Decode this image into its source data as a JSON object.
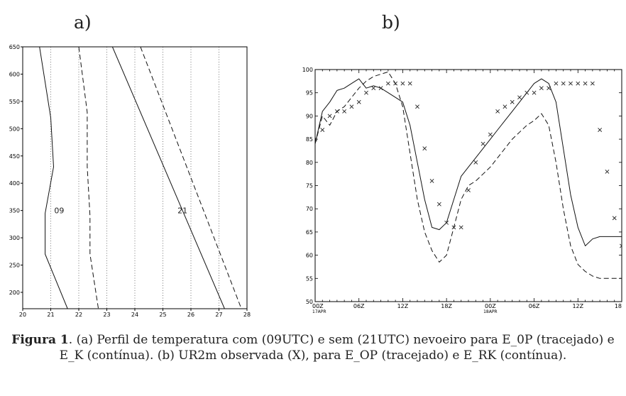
{
  "panel_labels": {
    "a": "a)",
    "b": "b)"
  },
  "caption": {
    "label": "Figura 1",
    "text": ". (a) Perfil de temperatura com (09UTC) e sem (21UTC) nevoeiro para E_0P (tracejado) e E_K (contínua). (b) UR2m observada (X), para E_OP (tracejado) e E_RK (contínua)."
  },
  "chart_data": [
    {
      "type": "line",
      "panel": "a",
      "title": "",
      "xlabel": "",
      "ylabel": "",
      "xlim": [
        20,
        28
      ],
      "ylim": [
        170,
        650
      ],
      "y_inverted": true,
      "xticks": [
        "20",
        "21",
        "22",
        "23",
        "24",
        "25",
        "26",
        "27",
        "28"
      ],
      "yticks": [
        "200",
        "250",
        "300",
        "350",
        "400",
        "450",
        "500",
        "550",
        "600",
        "650"
      ],
      "grid": "vertical dotted",
      "annotations": [
        {
          "text": "09",
          "x": 21.3,
          "y": 350
        },
        {
          "text": "21",
          "x": 25.7,
          "y": 350
        }
      ],
      "series": [
        {
          "style": "solid",
          "points": [
            [
              20.6,
              650
            ],
            [
              21.0,
              520
            ],
            [
              21.1,
              430
            ],
            [
              20.8,
              345
            ],
            [
              20.8,
              270
            ],
            [
              21.6,
              170
            ]
          ]
        },
        {
          "style": "dashed",
          "points": [
            [
              22.0,
              650
            ],
            [
              22.3,
              530
            ],
            [
              22.3,
              430
            ],
            [
              22.4,
              340
            ],
            [
              22.4,
              270
            ],
            [
              22.7,
              170
            ]
          ]
        },
        {
          "style": "solid",
          "points": [
            [
              23.2,
              650
            ],
            [
              27.2,
              170
            ]
          ]
        },
        {
          "style": "dashed",
          "points": [
            [
              24.2,
              650
            ],
            [
              27.8,
              170
            ]
          ]
        }
      ]
    },
    {
      "type": "line",
      "panel": "b",
      "title": "",
      "xlabel": "",
      "ylabel": "",
      "xlim": [
        0,
        42
      ],
      "ylim": [
        50,
        100
      ],
      "xticks": [
        {
          "v": 0,
          "l1": "00Z",
          "l2": "17APR"
        },
        {
          "v": 6,
          "l1": "06Z",
          "l2": ""
        },
        {
          "v": 12,
          "l1": "12Z",
          "l2": ""
        },
        {
          "v": 18,
          "l1": "18Z",
          "l2": ""
        },
        {
          "v": 24,
          "l1": "00Z",
          "l2": "18APR"
        },
        {
          "v": 30,
          "l1": "06Z",
          "l2": ""
        },
        {
          "v": 36,
          "l1": "12Z",
          "l2": ""
        },
        {
          "v": 42,
          "l1": "18",
          "l2": ""
        }
      ],
      "yticks": [
        "50",
        "55",
        "60",
        "65",
        "70",
        "75",
        "80",
        "85",
        "90",
        "95",
        "100"
      ],
      "grid": "off",
      "series": [
        {
          "style": "solid",
          "x": [
            0,
            1,
            2,
            3,
            4,
            5,
            6,
            7,
            8,
            9,
            10,
            11,
            12,
            13,
            14,
            15,
            16,
            17,
            18,
            19,
            20,
            21,
            22,
            23,
            24,
            25,
            26,
            27,
            28,
            29,
            30,
            31,
            32,
            33,
            34,
            35,
            36,
            37,
            38,
            39,
            40,
            41,
            42
          ],
          "y": [
            84,
            91,
            93,
            95.5,
            96,
            97,
            98,
            96,
            96.5,
            96,
            95,
            94,
            93,
            88,
            80,
            72,
            66,
            65.5,
            67,
            72,
            77,
            79,
            81,
            83,
            85,
            87,
            89,
            91,
            93,
            95,
            97,
            98,
            97,
            93,
            83,
            73,
            66,
            62,
            63.5,
            64,
            64,
            64,
            64
          ]
        },
        {
          "style": "dashed",
          "x": [
            0,
            1,
            2,
            3,
            4,
            5,
            6,
            7,
            8,
            9,
            10,
            11,
            12,
            13,
            14,
            15,
            16,
            17,
            18,
            19,
            20,
            21,
            22,
            23,
            24,
            25,
            26,
            27,
            28,
            29,
            30,
            31,
            32,
            33,
            34,
            35,
            36,
            37,
            38,
            39,
            40,
            41,
            42
          ],
          "y": [
            84,
            90,
            88,
            91,
            92,
            94,
            96,
            97.5,
            98.5,
            99,
            99.5,
            97,
            92,
            82,
            72,
            65,
            61,
            58.5,
            60,
            66,
            72,
            75,
            76,
            77.5,
            79,
            81,
            83,
            85,
            86.5,
            88,
            89,
            90.5,
            88,
            80,
            70,
            62,
            58,
            56.5,
            55.5,
            55,
            55,
            55,
            55
          ]
        },
        {
          "style": "markers-x",
          "x": [
            0,
            1,
            2,
            3,
            4,
            5,
            6,
            7,
            8,
            9,
            10,
            11,
            12,
            13,
            14,
            15,
            16,
            17,
            18,
            19,
            20,
            21,
            22,
            23,
            24,
            25,
            26,
            27,
            28,
            29,
            30,
            31,
            32,
            33,
            34,
            35,
            36,
            37,
            38,
            39,
            40,
            41,
            42
          ],
          "y": [
            85,
            87,
            90,
            91,
            91,
            92,
            93,
            95,
            96,
            96,
            97,
            97,
            97,
            97,
            92,
            83,
            76,
            71,
            67,
            66,
            66,
            74,
            80,
            84,
            86,
            91,
            92,
            93,
            94,
            95,
            95,
            96,
            96,
            97,
            97,
            97,
            97,
            97,
            97,
            87,
            78,
            68,
            62
          ]
        }
      ]
    }
  ]
}
